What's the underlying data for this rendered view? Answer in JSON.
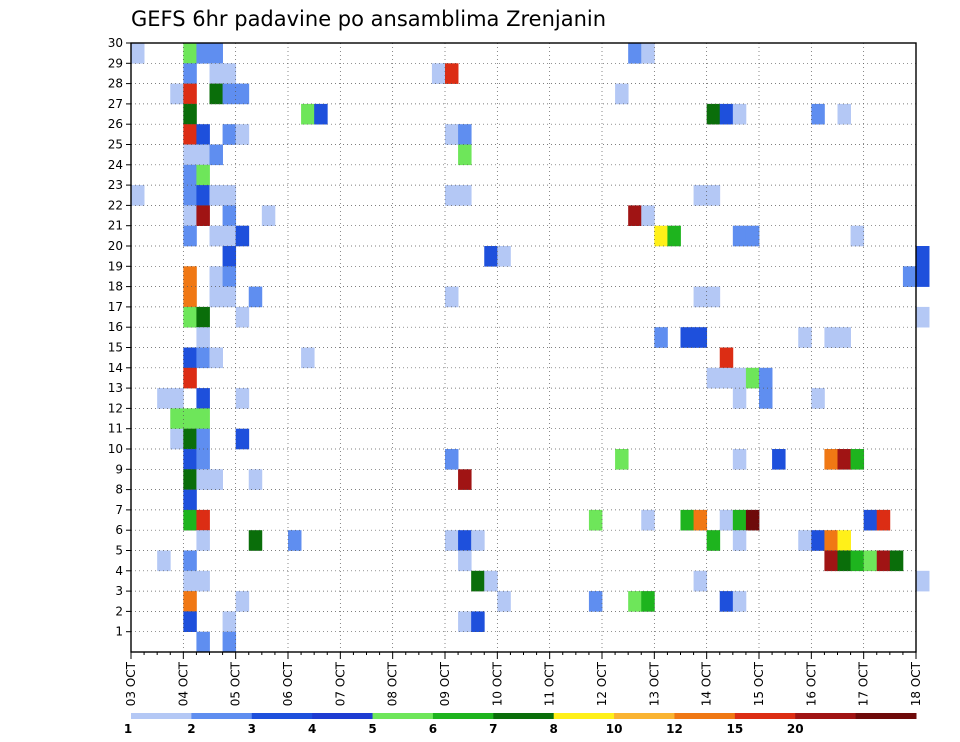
{
  "chart_data": {
    "type": "heatmap",
    "title": "GEFS 6hr padavine po ansamblima Zrenjanin",
    "x_ticks": [
      "03 OCT",
      "04 OCT",
      "05 OCT",
      "06 OCT",
      "07 OCT",
      "08 OCT",
      "09 OCT",
      "10 OCT",
      "11 OCT",
      "12 OCT",
      "13 OCT",
      "14 OCT",
      "15 OCT",
      "16 OCT",
      "17 OCT",
      "18 OCT"
    ],
    "xlim": [
      0,
      60
    ],
    "x_step_hours": 6,
    "y_ticks": [
      "1",
      "2",
      "3",
      "4",
      "5",
      "6",
      "7",
      "8",
      "9",
      "10",
      "11",
      "12",
      "13",
      "14",
      "15",
      "16",
      "17",
      "18",
      "19",
      "20",
      "21",
      "22",
      "23",
      "24",
      "25",
      "26",
      "27",
      "28",
      "29",
      "30"
    ],
    "ylim": [
      0,
      30
    ],
    "grid": true,
    "colorbar": {
      "levels": [
        "1",
        "2",
        "3",
        "4",
        "5",
        "6",
        "7",
        "8",
        "10",
        "12",
        "15",
        "20"
      ],
      "colors": [
        "#b4c8f5",
        "#5f8ef0",
        "#1e50dc",
        "#1e3cd2",
        "#6ee65a",
        "#1eb41e",
        "#0a6e0a",
        "#fff019",
        "#fab432",
        "#f07814",
        "#dc2d14",
        "#a01414",
        "#6e0a0a"
      ]
    },
    "cells": [
      [
        30,
        0,
        1
      ],
      [
        30,
        4,
        5
      ],
      [
        30,
        5,
        2
      ],
      [
        30,
        6,
        2
      ],
      [
        30,
        38,
        2
      ],
      [
        30,
        39,
        1
      ],
      [
        29,
        4,
        2
      ],
      [
        29,
        6,
        1
      ],
      [
        29,
        7,
        1
      ],
      [
        29,
        23,
        1
      ],
      [
        29,
        24,
        11
      ],
      [
        28,
        3,
        1
      ],
      [
        28,
        4,
        11
      ],
      [
        28,
        6,
        7
      ],
      [
        28,
        7,
        2
      ],
      [
        28,
        8,
        2
      ],
      [
        28,
        37,
        1
      ],
      [
        27,
        4,
        7
      ],
      [
        27,
        13,
        5
      ],
      [
        27,
        14,
        3
      ],
      [
        27,
        44,
        7
      ],
      [
        27,
        45,
        3
      ],
      [
        27,
        46,
        1
      ],
      [
        27,
        52,
        2
      ],
      [
        27,
        54,
        1
      ],
      [
        26,
        4,
        11
      ],
      [
        26,
        5,
        3
      ],
      [
        26,
        7,
        2
      ],
      [
        26,
        8,
        1
      ],
      [
        26,
        24,
        1
      ],
      [
        26,
        25,
        2
      ],
      [
        25,
        4,
        1
      ],
      [
        25,
        5,
        1
      ],
      [
        25,
        6,
        2
      ],
      [
        25,
        25,
        5
      ],
      [
        24,
        4,
        2
      ],
      [
        24,
        5,
        5
      ],
      [
        23,
        0,
        1
      ],
      [
        23,
        4,
        2
      ],
      [
        23,
        5,
        3
      ],
      [
        23,
        6,
        1
      ],
      [
        23,
        7,
        1
      ],
      [
        23,
        24,
        1
      ],
      [
        23,
        25,
        1
      ],
      [
        23,
        43,
        1
      ],
      [
        23,
        44,
        1
      ],
      [
        22,
        4,
        1
      ],
      [
        22,
        5,
        12
      ],
      [
        22,
        7,
        2
      ],
      [
        22,
        10,
        1
      ],
      [
        22,
        38,
        12
      ],
      [
        22,
        39,
        1
      ],
      [
        21,
        4,
        2
      ],
      [
        21,
        6,
        1
      ],
      [
        21,
        7,
        1
      ],
      [
        21,
        8,
        3
      ],
      [
        21,
        40,
        8
      ],
      [
        21,
        41,
        6
      ],
      [
        21,
        46,
        2
      ],
      [
        21,
        47,
        2
      ],
      [
        21,
        55,
        1
      ],
      [
        20,
        7,
        3
      ],
      [
        20,
        27,
        3
      ],
      [
        20,
        28,
        1
      ],
      [
        20,
        60,
        3
      ],
      [
        19,
        4,
        10
      ],
      [
        19,
        6,
        1
      ],
      [
        19,
        7,
        2
      ],
      [
        19,
        59,
        2
      ],
      [
        19,
        60,
        3
      ],
      [
        18,
        4,
        10
      ],
      [
        18,
        6,
        1
      ],
      [
        18,
        7,
        1
      ],
      [
        18,
        9,
        2
      ],
      [
        18,
        24,
        1
      ],
      [
        18,
        43,
        1
      ],
      [
        18,
        44,
        1
      ],
      [
        17,
        4,
        5
      ],
      [
        17,
        5,
        7
      ],
      [
        17,
        8,
        1
      ],
      [
        17,
        60,
        1
      ],
      [
        16,
        5,
        1
      ],
      [
        16,
        40,
        2
      ],
      [
        16,
        42,
        3
      ],
      [
        16,
        43,
        3
      ],
      [
        16,
        51,
        1
      ],
      [
        16,
        53,
        1
      ],
      [
        16,
        54,
        1
      ],
      [
        15,
        4,
        3
      ],
      [
        15,
        5,
        2
      ],
      [
        15,
        6,
        1
      ],
      [
        15,
        13,
        1
      ],
      [
        15,
        45,
        11
      ],
      [
        14,
        4,
        11
      ],
      [
        14,
        44,
        1
      ],
      [
        14,
        45,
        1
      ],
      [
        14,
        46,
        1
      ],
      [
        14,
        47,
        5
      ],
      [
        14,
        48,
        2
      ],
      [
        13,
        2,
        1
      ],
      [
        13,
        3,
        1
      ],
      [
        13,
        5,
        3
      ],
      [
        13,
        8,
        1
      ],
      [
        13,
        46,
        1
      ],
      [
        13,
        48,
        2
      ],
      [
        13,
        52,
        1
      ],
      [
        12,
        3,
        5
      ],
      [
        12,
        4,
        5
      ],
      [
        12,
        5,
        5
      ],
      [
        11,
        3,
        1
      ],
      [
        11,
        4,
        7
      ],
      [
        11,
        5,
        2
      ],
      [
        11,
        8,
        3
      ],
      [
        10,
        4,
        3
      ],
      [
        10,
        5,
        2
      ],
      [
        10,
        24,
        2
      ],
      [
        10,
        37,
        5
      ],
      [
        10,
        46,
        1
      ],
      [
        10,
        49,
        3
      ],
      [
        10,
        53,
        10
      ],
      [
        10,
        54,
        12
      ],
      [
        10,
        55,
        6
      ],
      [
        9,
        4,
        7
      ],
      [
        9,
        5,
        1
      ],
      [
        9,
        6,
        1
      ],
      [
        9,
        9,
        1
      ],
      [
        9,
        25,
        12
      ],
      [
        8,
        4,
        3
      ],
      [
        7,
        4,
        6
      ],
      [
        7,
        5,
        11
      ],
      [
        7,
        35,
        5
      ],
      [
        7,
        39,
        1
      ],
      [
        7,
        42,
        6
      ],
      [
        7,
        43,
        10
      ],
      [
        7,
        45,
        1
      ],
      [
        7,
        46,
        6
      ],
      [
        7,
        47,
        13
      ],
      [
        7,
        56,
        3
      ],
      [
        7,
        57,
        11
      ],
      [
        6,
        5,
        1
      ],
      [
        6,
        9,
        7
      ],
      [
        6,
        12,
        2
      ],
      [
        6,
        24,
        1
      ],
      [
        6,
        25,
        3
      ],
      [
        6,
        26,
        1
      ],
      [
        6,
        44,
        6
      ],
      [
        6,
        46,
        1
      ],
      [
        6,
        51,
        1
      ],
      [
        6,
        52,
        3
      ],
      [
        6,
        53,
        10
      ],
      [
        6,
        54,
        8
      ],
      [
        5,
        2,
        1
      ],
      [
        5,
        4,
        2
      ],
      [
        5,
        25,
        1
      ],
      [
        5,
        53,
        12
      ],
      [
        5,
        54,
        7
      ],
      [
        5,
        55,
        6
      ],
      [
        5,
        56,
        5
      ],
      [
        5,
        57,
        12
      ],
      [
        5,
        58,
        7
      ],
      [
        4,
        4,
        1
      ],
      [
        4,
        5,
        1
      ],
      [
        4,
        26,
        7
      ],
      [
        4,
        27,
        1
      ],
      [
        4,
        43,
        1
      ],
      [
        4,
        60,
        1
      ],
      [
        3,
        4,
        10
      ],
      [
        3,
        8,
        1
      ],
      [
        3,
        28,
        1
      ],
      [
        3,
        35,
        2
      ],
      [
        3,
        38,
        5
      ],
      [
        3,
        39,
        6
      ],
      [
        3,
        45,
        3
      ],
      [
        3,
        46,
        1
      ],
      [
        2,
        4,
        3
      ],
      [
        2,
        7,
        1
      ],
      [
        2,
        25,
        1
      ],
      [
        2,
        26,
        3
      ],
      [
        1,
        5,
        2
      ],
      [
        1,
        7,
        2
      ]
    ]
  }
}
